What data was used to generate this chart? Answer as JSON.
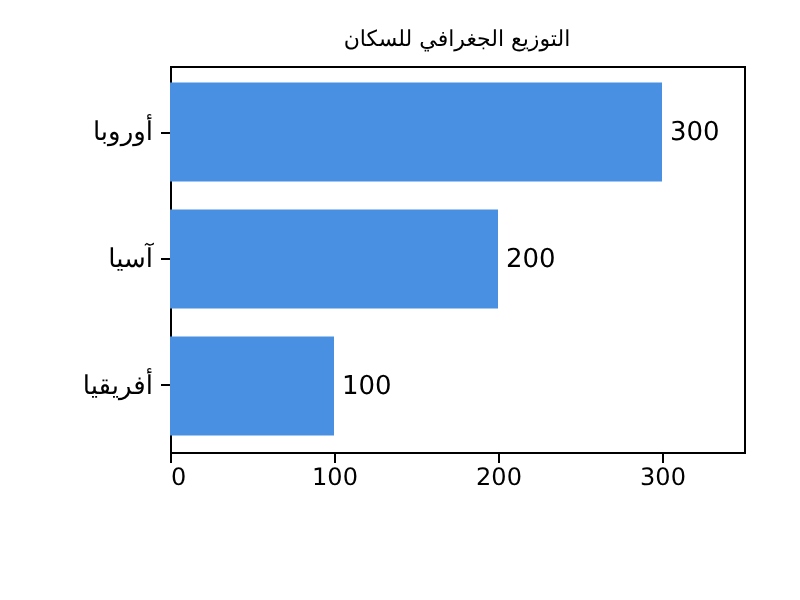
{
  "chart_data": {
    "type": "bar",
    "orientation": "horizontal",
    "title": "التوزيع الجغرافي للسكان",
    "categories": [
      "أوروبا",
      "آسيا",
      "أفريقيا"
    ],
    "values": [
      300,
      200,
      100
    ],
    "color": "#4a90e2",
    "xlim": [
      0,
      350
    ],
    "xticks": [
      0,
      100,
      200,
      300
    ],
    "data_labels": true,
    "grid": false
  }
}
